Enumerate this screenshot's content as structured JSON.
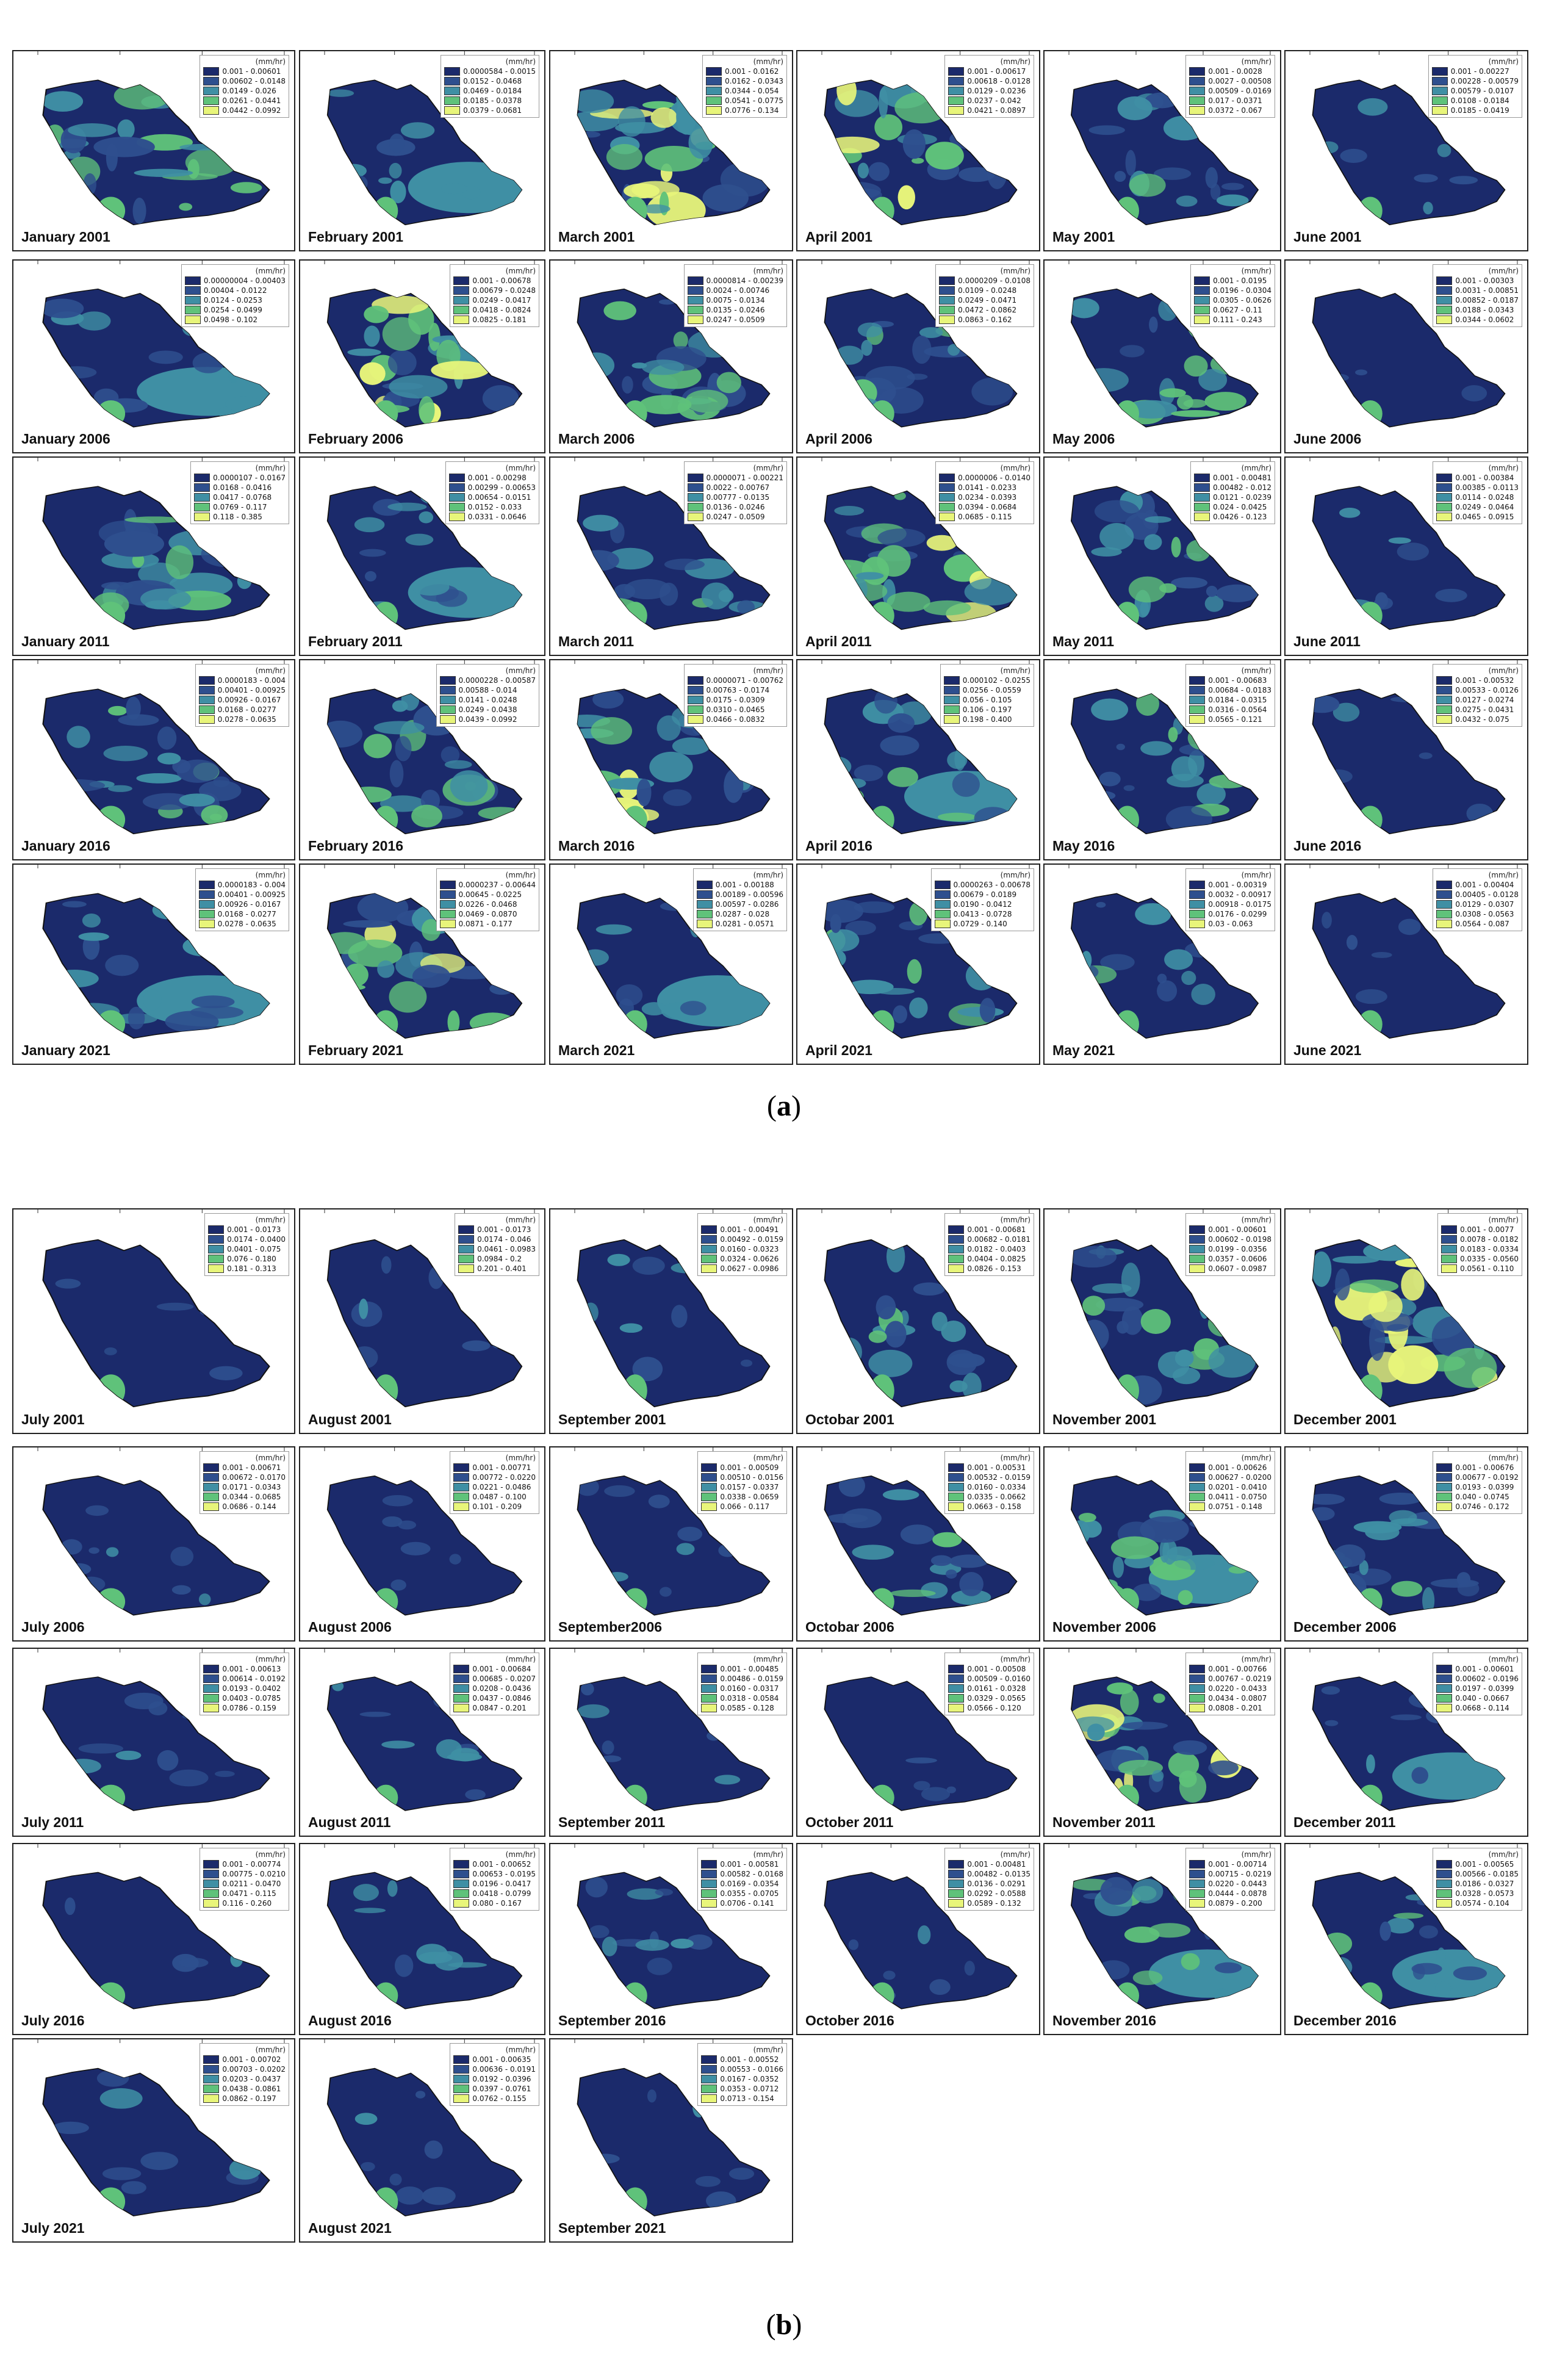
{
  "captions": {
    "a": "a",
    "b": "b"
  },
  "unit": "(mm/hr)",
  "classes": 5,
  "colors": {
    "c1": "#1b2a6b",
    "c2": "#2e4f8e",
    "c3": "#3f8fa4",
    "c4": "#5fc27a",
    "c5": "#e8f57a"
  },
  "panels_a": [
    {
      "label": "January 2001",
      "legend": [
        "0.001 - 0.00601",
        "0.00602 - 0.0148",
        "0.0149 - 0.026",
        "0.0261 - 0.0441",
        "0.0442 - 0.0992"
      ],
      "intensity": 0.55,
      "pale": false
    },
    {
      "label": "February 2001",
      "legend": [
        "0.0000584 - 0.0015",
        "0.0152 - 0.0468",
        "0.0469 - 0.0184",
        "0.0185 - 0.0378",
        "0.0379 - 0.0681"
      ],
      "intensity": 0.2,
      "pale": true
    },
    {
      "label": "March 2001",
      "legend": [
        "0.001 - 0.0162",
        "0.0162 - 0.0343",
        "0.0344 - 0.054",
        "0.0541 - 0.0775",
        "0.0776 - 0.134"
      ],
      "intensity": 0.75,
      "pale": false
    },
    {
      "label": "April 2001",
      "legend": [
        "0.001 - 0.00617",
        "0.00618 - 0.0128",
        "0.0129 - 0.0236",
        "0.0237 - 0.042",
        "0.0421 - 0.0897"
      ],
      "intensity": 0.6,
      "pale": false
    },
    {
      "label": "May 2001",
      "legend": [
        "0.001 - 0.0028",
        "0.0027 - 0.00508",
        "0.00509 - 0.0169",
        "0.017 - 0.0371",
        "0.0372 - 0.067"
      ],
      "intensity": 0.3,
      "pale": false
    },
    {
      "label": "June 2001",
      "legend": [
        "0.001 - 0.00227",
        "0.00228 - 0.00579",
        "0.00579 - 0.0107",
        "0.0108 - 0.0184",
        "0.0185 - 0.0419"
      ],
      "intensity": 0.08,
      "pale": false
    },
    {
      "label": "January 2006",
      "legend": [
        "0.00000004 - 0.00403",
        "0.00404 - 0.0122",
        "0.0124 - 0.0253",
        "0.0254 - 0.0499",
        "0.0498 - 0.102"
      ],
      "intensity": 0.25,
      "pale": true
    },
    {
      "label": "February 2006",
      "legend": [
        "0.001 - 0.00678",
        "0.00679 - 0.0248",
        "0.0249 - 0.0417",
        "0.0418 - 0.0824",
        "0.0825 - 0.181"
      ],
      "intensity": 0.65,
      "pale": false
    },
    {
      "label": "March 2006",
      "legend": [
        "0.0000814 - 0.00239",
        "0.0024 - 0.00746",
        "0.0075 - 0.0134",
        "0.0135 - 0.0246",
        "0.0247 - 0.0509"
      ],
      "intensity": 0.5,
      "pale": false
    },
    {
      "label": "April 2006",
      "legend": [
        "0.0000209 - 0.0108",
        "0.0109 - 0.0248",
        "0.0249 - 0.0471",
        "0.0472 - 0.0862",
        "0.0863 - 0.162"
      ],
      "intensity": 0.45,
      "pale": false
    },
    {
      "label": "May 2006",
      "legend": [
        "0.001 - 0.0195",
        "0.0196 - 0.0304",
        "0.0305 - 0.0626",
        "0.0627 - 0.11",
        "0.111 - 0.243"
      ],
      "intensity": 0.5,
      "pale": false
    },
    {
      "label": "June 2006",
      "legend": [
        "0.001 - 0.00303",
        "0.0031 - 0.00851",
        "0.00852 - 0.0187",
        "0.0188 - 0.0343",
        "0.0344 - 0.0602"
      ],
      "intensity": 0.05,
      "pale": false
    },
    {
      "label": "January 2011",
      "legend": [
        "0.0000107 - 0.0167",
        "0.0168 - 0.0416",
        "0.0417 - 0.0768",
        "0.0769 - 0.117",
        "0.118 - 0.385"
      ],
      "intensity": 0.6,
      "pale": false
    },
    {
      "label": "February 2011",
      "legend": [
        "0.001 - 0.00298",
        "0.00299 - 0.00653",
        "0.00654 - 0.0151",
        "0.0152 - 0.033",
        "0.0331 - 0.0646"
      ],
      "intensity": 0.2,
      "pale": true
    },
    {
      "label": "March 2011",
      "legend": [
        "0.0000071 - 0.00221",
        "0.0022 - 0.00767",
        "0.00777 - 0.0135",
        "0.0136 - 0.0246",
        "0.0247 - 0.0509"
      ],
      "intensity": 0.45,
      "pale": false
    },
    {
      "label": "April 2011",
      "legend": [
        "0.0000006 - 0.0140",
        "0.0141 - 0.0233",
        "0.0234 - 0.0393",
        "0.0394 - 0.0684",
        "0.0685 - 0.115"
      ],
      "intensity": 0.55,
      "pale": false
    },
    {
      "label": "May 2011",
      "legend": [
        "0.001 - 0.00481",
        "0.00482 - 0.012",
        "0.0121 - 0.0239",
        "0.024 - 0.0425",
        "0.0426 - 0.123"
      ],
      "intensity": 0.4,
      "pale": false
    },
    {
      "label": "June 2011",
      "legend": [
        "0.001 - 0.00384",
        "0.00385 - 0.0113",
        "0.0114 - 0.0248",
        "0.0249 - 0.0464",
        "0.0465 - 0.0915"
      ],
      "intensity": 0.12,
      "pale": false
    },
    {
      "label": "January 2016",
      "legend": [
        "0.0000183 - 0.004",
        "0.00401 - 0.00925",
        "0.00926 - 0.0167",
        "0.0168 - 0.0277",
        "0.0278 - 0.0635"
      ],
      "intensity": 0.45,
      "pale": false
    },
    {
      "label": "February 2016",
      "legend": [
        "0.0000228 - 0.00587",
        "0.00588 - 0.014",
        "0.0141 - 0.0248",
        "0.0249 - 0.0438",
        "0.0439 - 0.0992"
      ],
      "intensity": 0.5,
      "pale": false
    },
    {
      "label": "March 2016",
      "legend": [
        "0.0000071 - 0.00762",
        "0.00763 - 0.0174",
        "0.0175 - 0.0309",
        "0.0310 - 0.0465",
        "0.0466 - 0.0832"
      ],
      "intensity": 0.6,
      "pale": false
    },
    {
      "label": "April 2016",
      "legend": [
        "0.000102 - 0.0255",
        "0.0256 - 0.0559",
        "0.056 - 0.105",
        "0.106 - 0.197",
        "0.198 - 0.400"
      ],
      "intensity": 0.3,
      "pale": true
    },
    {
      "label": "May 2016",
      "legend": [
        "0.001 - 0.00683",
        "0.00684 - 0.0183",
        "0.0184 - 0.0315",
        "0.0316 - 0.0564",
        "0.0565 - 0.121"
      ],
      "intensity": 0.4,
      "pale": false
    },
    {
      "label": "June 2016",
      "legend": [
        "0.001 - 0.00532",
        "0.00533 - 0.0126",
        "0.0127 - 0.0274",
        "0.0275 - 0.0431",
        "0.0432 - 0.075"
      ],
      "intensity": 0.1,
      "pale": false
    },
    {
      "label": "January 2021",
      "legend": [
        "0.0000183 - 0.004",
        "0.00401 - 0.00925",
        "0.00926 - 0.0167",
        "0.0168 - 0.0277",
        "0.0278 - 0.0635"
      ],
      "intensity": 0.35,
      "pale": true
    },
    {
      "label": "February 2021",
      "legend": [
        "0.0000237 - 0.00644",
        "0.00645 - 0.0225",
        "0.0226 - 0.0468",
        "0.0469 - 0.0870",
        "0.0871 - 0.177"
      ],
      "intensity": 0.55,
      "pale": false
    },
    {
      "label": "March 2021",
      "legend": [
        "0.001 - 0.00188",
        "0.00189 - 0.00596",
        "0.00597 - 0.0286",
        "0.0287 - 0.028",
        "0.0281 - 0.0571"
      ],
      "intensity": 0.2,
      "pale": true
    },
    {
      "label": "April 2021",
      "legend": [
        "0.0000263 - 0.00678",
        "0.00679 - 0.0189",
        "0.0190 - 0.0412",
        "0.0413 - 0.0728",
        "0.0729 - 0.140"
      ],
      "intensity": 0.4,
      "pale": false
    },
    {
      "label": "May 2021",
      "legend": [
        "0.001 - 0.00319",
        "0.0032 - 0.00917",
        "0.00918 - 0.0175",
        "0.0176 - 0.0299",
        "0.03 - 0.063"
      ],
      "intensity": 0.3,
      "pale": false
    },
    {
      "label": "June 2021",
      "legend": [
        "0.001 - 0.00404",
        "0.00405 - 0.0128",
        "0.0129 - 0.0307",
        "0.0308 - 0.0563",
        "0.0564 - 0.087"
      ],
      "intensity": 0.04,
      "pale": false
    }
  ],
  "panels_b": [
    {
      "label": "July 2001",
      "legend": [
        "0.001 - 0.0173",
        "0.0174 - 0.0400",
        "0.0401 - 0.075",
        "0.076 - 0.180",
        "0.181 - 0.313"
      ],
      "intensity": 0.03,
      "pale": false
    },
    {
      "label": "August  2001",
      "legend": [
        "0.001 - 0.0173",
        "0.0174 - 0.046",
        "0.0461 - 0.0983",
        "0.0984 - 0.2",
        "0.201 - 0.401"
      ],
      "intensity": 0.15,
      "pale": false
    },
    {
      "label": "September 2001",
      "legend": [
        "0.001 - 0.00491",
        "0.00492 - 0.0159",
        "0.0160 - 0.0323",
        "0.0324 - 0.0626",
        "0.0627 - 0.0986"
      ],
      "intensity": 0.1,
      "pale": false
    },
    {
      "label": "Octobar 2001",
      "legend": [
        "0.001 - 0.00681",
        "0.00682 - 0.0181",
        "0.0182 - 0.0403",
        "0.0404 - 0.0825",
        "0.0826 - 0.153"
      ],
      "intensity": 0.35,
      "pale": false
    },
    {
      "label": "November 2001",
      "legend": [
        "0.001 - 0.00601",
        "0.00602 - 0.0198",
        "0.0199 - 0.0356",
        "0.0357 - 0.0606",
        "0.0607 - 0.0987"
      ],
      "intensity": 0.45,
      "pale": false
    },
    {
      "label": "December 2001",
      "legend": [
        "0.001 - 0.0077",
        "0.0078 - 0.0182",
        "0.0183 - 0.0334",
        "0.0335 - 0.0560",
        "0.0561 - 0.110"
      ],
      "intensity": 0.7,
      "pale": false
    },
    {
      "label": "July  2006",
      "legend": [
        "0.001 - 0.00671",
        "0.00672 - 0.0170",
        "0.0171 - 0.0343",
        "0.0344 - 0.0685",
        "0.0686 - 0.144"
      ],
      "intensity": 0.12,
      "pale": false
    },
    {
      "label": "August 2006",
      "legend": [
        "0.001 - 0.00771",
        "0.00772 - 0.0220",
        "0.0221 - 0.0486",
        "0.0487 - 0.100",
        "0.101 - 0.209"
      ],
      "intensity": 0.05,
      "pale": false
    },
    {
      "label": "September2006",
      "legend": [
        "0.001 - 0.00509",
        "0.00510 - 0.0156",
        "0.0157 - 0.0337",
        "0.0338 - 0.0659",
        "0.066 - 0.117"
      ],
      "intensity": 0.1,
      "pale": false
    },
    {
      "label": "Octobar  2006",
      "legend": [
        "0.001 - 0.00531",
        "0.00532 - 0.0159",
        "0.0160 - 0.0334",
        "0.0335 - 0.0662",
        "0.0663 - 0.158"
      ],
      "intensity": 0.35,
      "pale": false
    },
    {
      "label": "November 2006",
      "legend": [
        "0.001 - 0.00626",
        "0.00627 - 0.0200",
        "0.0201 - 0.0410",
        "0.0411 - 0.0750",
        "0.0751 - 0.148"
      ],
      "intensity": 0.5,
      "pale": true
    },
    {
      "label": "December 2006",
      "legend": [
        "0.001 - 0.00676",
        "0.00677 - 0.0192",
        "0.0193 - 0.0399",
        "0.040 - 0.0745",
        "0.0746 - 0.172"
      ],
      "intensity": 0.4,
      "pale": false
    },
    {
      "label": "July  2011",
      "legend": [
        "0.001 - 0.00613",
        "0.00614 - 0.0192",
        "0.0193 - 0.0402",
        "0.0403 - 0.0785",
        "0.0786 - 0.159"
      ],
      "intensity": 0.18,
      "pale": false
    },
    {
      "label": "August 2011",
      "legend": [
        "0.001 - 0.00684",
        "0.00685 - 0.0207",
        "0.0208 - 0.0436",
        "0.0437 - 0.0846",
        "0.0847 - 0.201"
      ],
      "intensity": 0.12,
      "pale": false
    },
    {
      "label": "September 2011",
      "legend": [
        "0.001 - 0.00485",
        "0.00486 - 0.0159",
        "0.0160 - 0.0317",
        "0.0318 - 0.0584",
        "0.0585 - 0.128"
      ],
      "intensity": 0.05,
      "pale": false
    },
    {
      "label": "October 2011",
      "legend": [
        "0.001 - 0.00508",
        "0.00509 - 0.0160",
        "0.0161 - 0.0328",
        "0.0329 - 0.0565",
        "0.0566 - 0.120"
      ],
      "intensity": 0.03,
      "pale": false
    },
    {
      "label": "November 2011",
      "legend": [
        "0.001 - 0.00766",
        "0.00767 - 0.0219",
        "0.0220 - 0.0433",
        "0.0434 - 0.0807",
        "0.0808 - 0.201"
      ],
      "intensity": 0.6,
      "pale": false
    },
    {
      "label": "December 2011",
      "legend": [
        "0.001 - 0.00601",
        "0.00602 - 0.0196",
        "0.0197 - 0.0399",
        "0.040 - 0.0667",
        "0.0668 - 0.114"
      ],
      "intensity": 0.12,
      "pale": true
    },
    {
      "label": "July  2016",
      "legend": [
        "0.001 - 0.00774",
        "0.00775 - 0.0210",
        "0.0211 - 0.0470",
        "0.0471 - 0.115",
        "0.116 - 0.260"
      ],
      "intensity": 0.1,
      "pale": false
    },
    {
      "label": "August 2016",
      "legend": [
        "0.001 - 0.00652",
        "0.00653 - 0.0195",
        "0.0196 - 0.0417",
        "0.0418 - 0.0799",
        "0.080 - 0.167"
      ],
      "intensity": 0.2,
      "pale": false
    },
    {
      "label": "September 2016",
      "legend": [
        "0.001 - 0.00581",
        "0.00582 - 0.0168",
        "0.0169 - 0.0354",
        "0.0355 - 0.0705",
        "0.0706 - 0.141"
      ],
      "intensity": 0.18,
      "pale": false
    },
    {
      "label": "October 2016",
      "legend": [
        "0.001 - 0.00481",
        "0.00482 - 0.0135",
        "0.0136 - 0.0291",
        "0.0292 - 0.0588",
        "0.0589 - 0.132"
      ],
      "intensity": 0.08,
      "pale": false
    },
    {
      "label": "November  2016",
      "legend": [
        "0.001 - 0.00714",
        "0.00715 - 0.0219",
        "0.0220 - 0.0443",
        "0.0444 - 0.0878",
        "0.0879 - 0.200"
      ],
      "intensity": 0.45,
      "pale": true
    },
    {
      "label": "December 2016",
      "legend": [
        "0.001 - 0.00565",
        "0.00566 - 0.0185",
        "0.0186 - 0.0327",
        "0.0328 - 0.0573",
        "0.0574 - 0.104"
      ],
      "intensity": 0.3,
      "pale": true
    },
    {
      "label": "July  2021",
      "legend": [
        "0.001 - 0.00702",
        "0.00703 - 0.0202",
        "0.0203 - 0.0437",
        "0.0438 - 0.0861",
        "0.0862 - 0.197"
      ],
      "intensity": 0.2,
      "pale": false
    },
    {
      "label": "August  2021",
      "legend": [
        "0.001 - 0.00635",
        "0.00636 - 0.0191",
        "0.0192 - 0.0396",
        "0.0397 - 0.0761",
        "0.0762 - 0.155"
      ],
      "intensity": 0.08,
      "pale": false
    },
    {
      "label": "September 2021",
      "legend": [
        "0.001 - 0.00552",
        "0.00553 - 0.0166",
        "0.0167 - 0.0352",
        "0.0353 - 0.0712",
        "0.0713 - 0.154"
      ],
      "intensity": 0.08,
      "pale": false
    }
  ]
}
